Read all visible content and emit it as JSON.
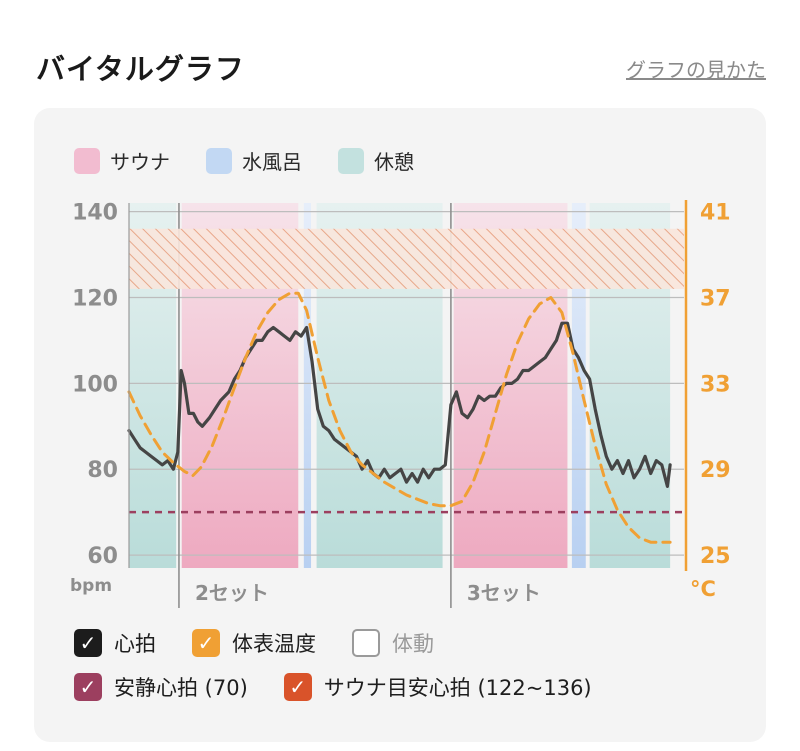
{
  "header": {
    "title": "バイタルグラフ",
    "help_link": "グラフの見かた"
  },
  "legend": [
    {
      "label": "サウナ",
      "color": "#f2bcd0"
    },
    {
      "label": "水風呂",
      "color": "#c2d8f3"
    },
    {
      "label": "休憩",
      "color": "#c3e1df"
    }
  ],
  "chart_data": {
    "type": "line",
    "y_left": {
      "ticks": [
        60,
        80,
        100,
        120,
        140
      ],
      "unit": "bpm",
      "range": [
        57,
        142
      ]
    },
    "y_right": {
      "ticks": [
        25,
        29,
        33,
        37,
        41
      ],
      "unit": "°C",
      "range": [
        24.4,
        41.4
      ]
    },
    "x_range": [
      0,
      100
    ],
    "sets": [
      {
        "label": "2セット",
        "x": 9
      },
      {
        "label": "3セット",
        "x": 58
      }
    ],
    "phases": [
      {
        "type": "rest",
        "start": 0,
        "end": 8.5
      },
      {
        "type": "sauna",
        "start": 9.5,
        "end": 30.5
      },
      {
        "type": "cold",
        "start": 31.5,
        "end": 32.8
      },
      {
        "type": "rest",
        "start": 33.8,
        "end": 56.5
      },
      {
        "type": "sauna",
        "start": 58.5,
        "end": 79
      },
      {
        "type": "cold",
        "start": 79.8,
        "end": 82.3
      },
      {
        "type": "rest",
        "start": 83,
        "end": 97.5
      }
    ],
    "resting_hr": 70,
    "target_hr": [
      122,
      136
    ],
    "series": [
      {
        "name": "心拍",
        "color": "#454545",
        "axis": "left",
        "points": [
          [
            0,
            89
          ],
          [
            1,
            87
          ],
          [
            2,
            85
          ],
          [
            3,
            84
          ],
          [
            4,
            83
          ],
          [
            5,
            82
          ],
          [
            6,
            81
          ],
          [
            7,
            82
          ],
          [
            8,
            80
          ],
          [
            8.8,
            84
          ],
          [
            9.4,
            103
          ],
          [
            10,
            100
          ],
          [
            10.8,
            93
          ],
          [
            11.6,
            93
          ],
          [
            12.4,
            91
          ],
          [
            13.2,
            90
          ],
          [
            14.5,
            92
          ],
          [
            15.5,
            94
          ],
          [
            16.5,
            96
          ],
          [
            18,
            98
          ],
          [
            19,
            101
          ],
          [
            20,
            103
          ],
          [
            21,
            106
          ],
          [
            22,
            108
          ],
          [
            23,
            110
          ],
          [
            24,
            110
          ],
          [
            25,
            112
          ],
          [
            26,
            113
          ],
          [
            27,
            112
          ],
          [
            28,
            111
          ],
          [
            29,
            110
          ],
          [
            30,
            112
          ],
          [
            31,
            111
          ],
          [
            32,
            113
          ],
          [
            33,
            105
          ],
          [
            34,
            94
          ],
          [
            35,
            90
          ],
          [
            36,
            89
          ],
          [
            37,
            87
          ],
          [
            38,
            86
          ],
          [
            39,
            85
          ],
          [
            40,
            84
          ],
          [
            41,
            83
          ],
          [
            42,
            80
          ],
          [
            43,
            82
          ],
          [
            44,
            79
          ],
          [
            45,
            78
          ],
          [
            46,
            80
          ],
          [
            47,
            78
          ],
          [
            48,
            79
          ],
          [
            49,
            80
          ],
          [
            50,
            77
          ],
          [
            51,
            79
          ],
          [
            52,
            77
          ],
          [
            53,
            80
          ],
          [
            54,
            78
          ],
          [
            55,
            80
          ],
          [
            56,
            80
          ],
          [
            57,
            81
          ],
          [
            58,
            95
          ],
          [
            59,
            98
          ],
          [
            60,
            93
          ],
          [
            61,
            92
          ],
          [
            62,
            94
          ],
          [
            63,
            97
          ],
          [
            64,
            96
          ],
          [
            65,
            97
          ],
          [
            66,
            97
          ],
          [
            67,
            99
          ],
          [
            68,
            100
          ],
          [
            69,
            100
          ],
          [
            70,
            101
          ],
          [
            71,
            103
          ],
          [
            72,
            103
          ],
          [
            73,
            104
          ],
          [
            74,
            105
          ],
          [
            75,
            106
          ],
          [
            76,
            108
          ],
          [
            77,
            110
          ],
          [
            78,
            114
          ],
          [
            79,
            114
          ],
          [
            80,
            108
          ],
          [
            81,
            106
          ],
          [
            82,
            103
          ],
          [
            83,
            101
          ],
          [
            84,
            94
          ],
          [
            85,
            88
          ],
          [
            86,
            83
          ],
          [
            87,
            80
          ],
          [
            88,
            82
          ],
          [
            89,
            79
          ],
          [
            90,
            82
          ],
          [
            91,
            78
          ],
          [
            92,
            80
          ],
          [
            93,
            83
          ],
          [
            94,
            79
          ],
          [
            95,
            82
          ],
          [
            96,
            81
          ],
          [
            97,
            76
          ],
          [
            97.5,
            81
          ]
        ]
      },
      {
        "name": "体表温度",
        "color": "#f0a034",
        "axis": "right",
        "points": [
          [
            0,
            32.6
          ],
          [
            2,
            31.5
          ],
          [
            4,
            30.6
          ],
          [
            6,
            29.8
          ],
          [
            8,
            29.3
          ],
          [
            10,
            28.9
          ],
          [
            11.5,
            28.7
          ],
          [
            13,
            29.1
          ],
          [
            15,
            30.1
          ],
          [
            17,
            31.4
          ],
          [
            19,
            32.8
          ],
          [
            21,
            34.2
          ],
          [
            23,
            35.4
          ],
          [
            25,
            36.3
          ],
          [
            27,
            36.9
          ],
          [
            29,
            37.2
          ],
          [
            30.5,
            37.2
          ],
          [
            32,
            36.4
          ],
          [
            34,
            34.2
          ],
          [
            36,
            32.2
          ],
          [
            38,
            30.8
          ],
          [
            40,
            29.8
          ],
          [
            42,
            29.2
          ],
          [
            44,
            28.8
          ],
          [
            46,
            28.4
          ],
          [
            48,
            28.1
          ],
          [
            50,
            27.8
          ],
          [
            52,
            27.6
          ],
          [
            54,
            27.4
          ],
          [
            56,
            27.3
          ],
          [
            58,
            27.3
          ],
          [
            60,
            27.5
          ],
          [
            62,
            28.4
          ],
          [
            64,
            29.8
          ],
          [
            66,
            31.6
          ],
          [
            68,
            33.4
          ],
          [
            70,
            34.9
          ],
          [
            72,
            36.0
          ],
          [
            74,
            36.7
          ],
          [
            76,
            37.0
          ],
          [
            78,
            36.3
          ],
          [
            80,
            34.4
          ],
          [
            82,
            32.2
          ],
          [
            84,
            30.1
          ],
          [
            86,
            28.3
          ],
          [
            88,
            27.1
          ],
          [
            90,
            26.3
          ],
          [
            92,
            25.8
          ],
          [
            94,
            25.6
          ],
          [
            96,
            25.6
          ],
          [
            97.5,
            25.6
          ]
        ]
      }
    ]
  },
  "toggles": {
    "row1": [
      {
        "label": "心拍",
        "checked": true,
        "color": "#1c1c1c"
      },
      {
        "label": "体表温度",
        "checked": true,
        "color": "#f0a034"
      },
      {
        "label": "体動",
        "checked": false,
        "color": "#9a9a9a"
      }
    ],
    "row2": [
      {
        "label": "安静心拍 (70)",
        "checked": true,
        "color": "#9c3f5f"
      },
      {
        "label": "サウナ目安心拍 (122~136)",
        "checked": true,
        "color": "#d9532a"
      }
    ]
  }
}
